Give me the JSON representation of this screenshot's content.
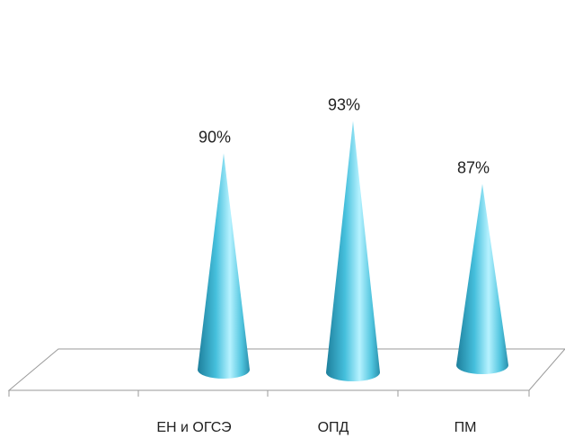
{
  "chart_data": {
    "type": "bar",
    "subtype": "3d-cone",
    "categories": [
      "ЕН и ОГСЭ",
      "ОПД",
      "ПМ"
    ],
    "values": [
      90,
      93,
      87
    ],
    "data_labels": [
      "90%",
      "93%",
      "87%"
    ],
    "title": "",
    "xlabel": "",
    "ylabel": "",
    "value_axis_visible": false,
    "grid": false,
    "legend": "none",
    "colors": {
      "cone_dark": "#1e7f9c",
      "cone_mid": "#45bfdc",
      "cone_light": "#b6f2ff",
      "floor_stroke": "#9a9a9a"
    }
  }
}
